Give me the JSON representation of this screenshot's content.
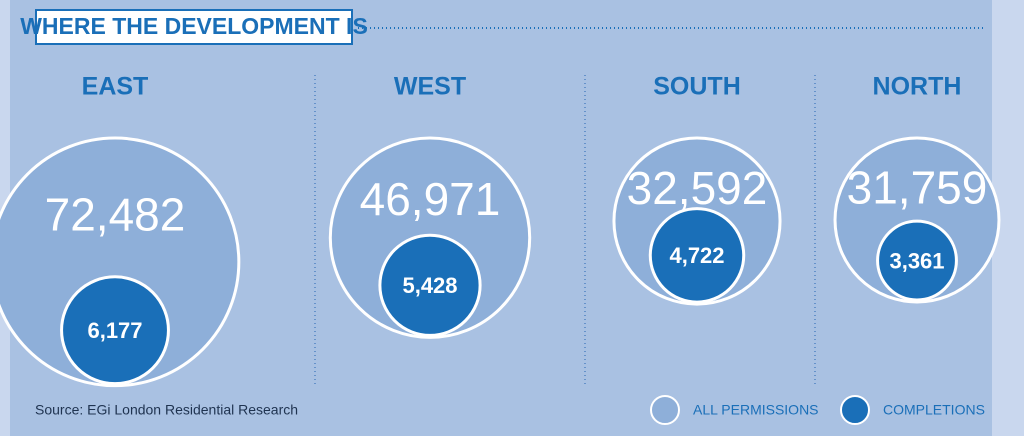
{
  "chart_data": {
    "type": "nested-circles",
    "title": "WHERE THE DEVELOPMENT IS",
    "categories": [
      "EAST",
      "WEST",
      "SOUTH",
      "NORTH"
    ],
    "series": [
      {
        "name": "ALL PERMISSIONS",
        "color": "#8eafd9",
        "values": [
          72482,
          46971,
          32592,
          31759
        ],
        "value_labels": [
          "72,482",
          "46,971",
          "32,592",
          "31,759"
        ]
      },
      {
        "name": "COMPLETIONS",
        "color": "#1a6fb8",
        "values": [
          6177,
          5428,
          4722,
          3361
        ],
        "value_labels": [
          "6,177",
          "5,428",
          "4,722",
          "3,361"
        ]
      }
    ],
    "source": "Source: EGi London Residential Research"
  }
}
